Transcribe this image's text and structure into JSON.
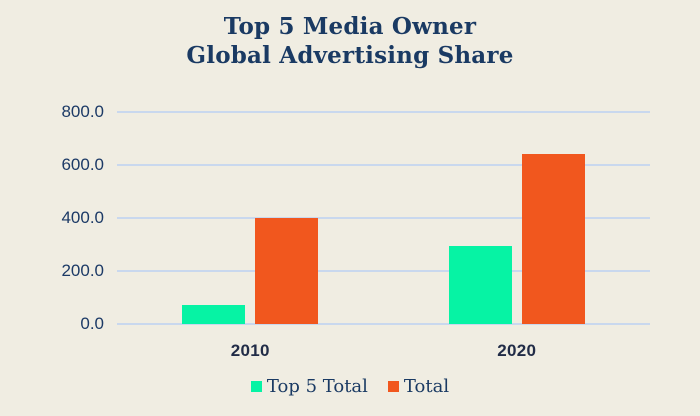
{
  "title": {
    "line1": "Top 5 Media Owner",
    "line2": "Global Advertising Share"
  },
  "chart_data": {
    "type": "bar",
    "title": "Top 5 Media Owner Global Advertising Share",
    "categories": [
      "2010",
      "2020"
    ],
    "series": [
      {
        "name": "Top 5 Total",
        "color": "#06F3A4",
        "values": [
          70,
          295
        ]
      },
      {
        "name": "Total",
        "color": "#F1571E",
        "values": [
          400,
          640
        ]
      }
    ],
    "xlabel": "",
    "ylabel": "",
    "ylim": [
      0,
      800
    ],
    "yticks": [
      800,
      600,
      400,
      200,
      0
    ],
    "ytick_labels": [
      "800.0",
      "600.0",
      "400.0",
      "200.0",
      "0.0"
    ],
    "grid": true,
    "legend_position": "bottom"
  },
  "colors": {
    "background": "#F0EDE2",
    "gridline": "#C9D8EE",
    "title_text": "#1A3A63",
    "axis_text": "#1C3A66",
    "category_text": "#212C47"
  }
}
